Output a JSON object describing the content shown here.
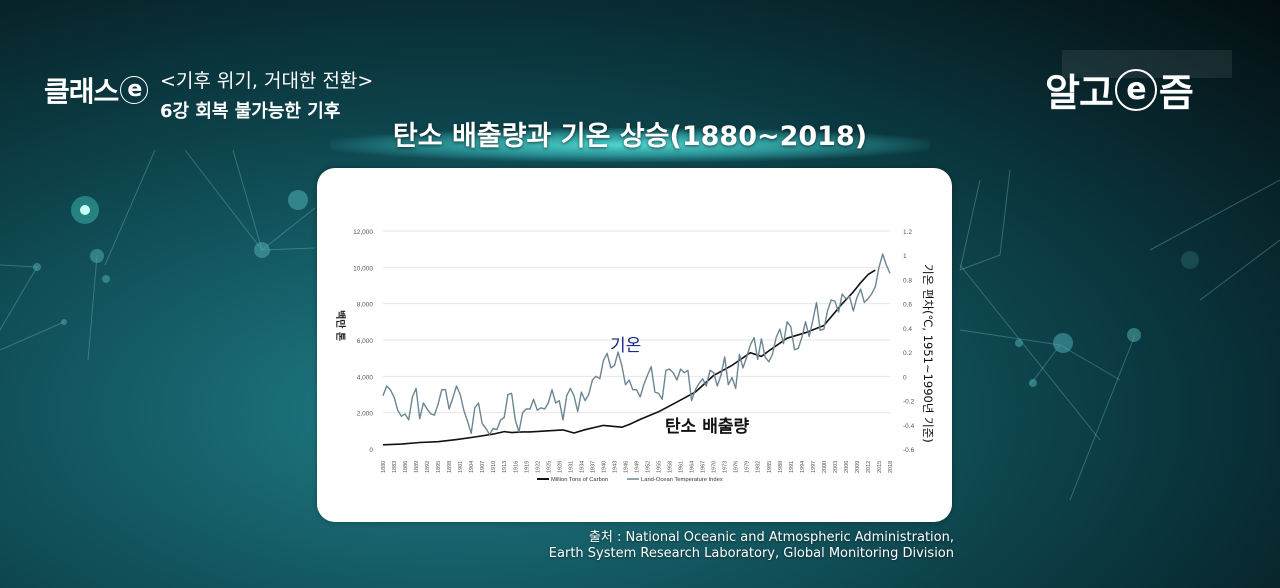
{
  "header": {
    "program_logo": "클래스",
    "program_logo_mark": "e",
    "series_title": "<기후 위기, 거대한 전환>",
    "episode": "6강 회복 불가능한 기후",
    "brand_left": "알고",
    "brand_mark": "e",
    "brand_right": "즘"
  },
  "main": {
    "title": "탄소 배출량과 기온 상승(1880~2018)"
  },
  "source": {
    "line1": "출처 : National Oceanic and Atmospheric Administration,",
    "line2": "Earth System Research Laboratory, Global Monitoring Division"
  },
  "colors": {
    "carbon_line": "#111111",
    "temp_line": "#6b8593",
    "temp_annotation": "#1a2a8a",
    "carbon_annotation": "#111111",
    "gridline": "#e6e6e6"
  },
  "chart_data": {
    "type": "line",
    "title": "탄소 배출량과 기온 상승(1880~2018)",
    "xlabel": "",
    "ylabel": "백만 톤",
    "y2label": "기온 편차(℃, 1951~1990년 기준)",
    "ylim": [
      0,
      12000
    ],
    "y2lim": [
      -0.6,
      1.2
    ],
    "yticks": [
      "0",
      "2,000",
      "4,000",
      "6,000",
      "8,000",
      "10,000",
      "12,000"
    ],
    "y2ticks": [
      "-0.6",
      "-0.4",
      "-0.2",
      "0",
      "0.2",
      "0.4",
      "0.6",
      "0.8",
      "1",
      "1.2"
    ],
    "xticks": [
      "1880",
      "1883",
      "1886",
      "1889",
      "1892",
      "1895",
      "1898",
      "1901",
      "1904",
      "1907",
      "1910",
      "1913",
      "1916",
      "1919",
      "1922",
      "1925",
      "1928",
      "1931",
      "1934",
      "1937",
      "1940",
      "1943",
      "1946",
      "1949",
      "1952",
      "1955",
      "1958",
      "1961",
      "1964",
      "1967",
      "1970",
      "1973",
      "1976",
      "1979",
      "1982",
      "1985",
      "1988",
      "1991",
      "1994",
      "1997",
      "2000",
      "2003",
      "2006",
      "2009",
      "2012",
      "2015",
      "2018"
    ],
    "grid": true,
    "legend_position": "bottom",
    "annotations": [
      {
        "text": "기온",
        "series": "Land-Ocean Temperature Index"
      },
      {
        "text": "탄소 배출량",
        "series": "Million Tons of Carbon"
      }
    ],
    "series": [
      {
        "name": "Million Tons of Carbon",
        "axis": "left",
        "x": [
          1880,
          1885,
          1890,
          1895,
          1900,
          1905,
          1910,
          1913,
          1915,
          1918,
          1920,
          1925,
          1929,
          1932,
          1935,
          1940,
          1945,
          1947,
          1950,
          1955,
          1960,
          1965,
          1970,
          1975,
          1980,
          1983,
          1985,
          1990,
          1995,
          2000,
          2005,
          2008,
          2010,
          2012,
          2014
        ],
        "values": [
          230,
          270,
          360,
          400,
          520,
          660,
          820,
          960,
          900,
          940,
          940,
          1000,
          1050,
          880,
          1060,
          1300,
          1200,
          1350,
          1630,
          2050,
          2580,
          3130,
          4050,
          4600,
          5300,
          5100,
          5400,
          6100,
          6400,
          6800,
          8000,
          8650,
          9150,
          9600,
          9850
        ]
      },
      {
        "name": "Land-Ocean Temperature Index",
        "axis": "right",
        "x": [
          1880,
          1881,
          1882,
          1883,
          1884,
          1885,
          1886,
          1887,
          1888,
          1889,
          1890,
          1891,
          1892,
          1893,
          1894,
          1895,
          1896,
          1897,
          1898,
          1899,
          1900,
          1901,
          1902,
          1903,
          1904,
          1905,
          1906,
          1907,
          1908,
          1909,
          1910,
          1911,
          1912,
          1913,
          1914,
          1915,
          1916,
          1917,
          1918,
          1919,
          1920,
          1921,
          1922,
          1923,
          1924,
          1925,
          1926,
          1927,
          1928,
          1929,
          1930,
          1931,
          1932,
          1933,
          1934,
          1935,
          1936,
          1937,
          1938,
          1939,
          1940,
          1941,
          1942,
          1943,
          1944,
          1945,
          1946,
          1947,
          1948,
          1949,
          1950,
          1951,
          1952,
          1953,
          1954,
          1955,
          1956,
          1957,
          1958,
          1959,
          1960,
          1961,
          1962,
          1963,
          1964,
          1965,
          1966,
          1967,
          1968,
          1969,
          1970,
          1971,
          1972,
          1973,
          1974,
          1975,
          1976,
          1977,
          1978,
          1979,
          1980,
          1981,
          1982,
          1983,
          1984,
          1985,
          1986,
          1987,
          1988,
          1989,
          1990,
          1991,
          1992,
          1993,
          1994,
          1995,
          1996,
          1997,
          1998,
          1999,
          2000,
          2001,
          2002,
          2003,
          2004,
          2005,
          2006,
          2007,
          2008,
          2009,
          2010,
          2011,
          2012,
          2013,
          2014,
          2015,
          2016,
          2017,
          2018
        ],
        "values": [
          -0.16,
          -0.08,
          -0.11,
          -0.17,
          -0.28,
          -0.33,
          -0.31,
          -0.36,
          -0.17,
          -0.1,
          -0.35,
          -0.22,
          -0.27,
          -0.31,
          -0.32,
          -0.23,
          -0.11,
          -0.11,
          -0.27,
          -0.18,
          -0.08,
          -0.15,
          -0.28,
          -0.37,
          -0.47,
          -0.26,
          -0.22,
          -0.39,
          -0.43,
          -0.48,
          -0.43,
          -0.44,
          -0.36,
          -0.34,
          -0.15,
          -0.14,
          -0.36,
          -0.46,
          -0.3,
          -0.27,
          -0.27,
          -0.19,
          -0.28,
          -0.26,
          -0.27,
          -0.22,
          -0.11,
          -0.22,
          -0.2,
          -0.36,
          -0.16,
          -0.1,
          -0.16,
          -0.29,
          -0.13,
          -0.2,
          -0.15,
          -0.03,
          0,
          -0.02,
          0.13,
          0.19,
          0.07,
          0.09,
          0.2,
          0.09,
          -0.07,
          -0.03,
          -0.11,
          -0.11,
          -0.17,
          -0.07,
          0.01,
          0.08,
          -0.13,
          -0.14,
          -0.19,
          0.05,
          0.06,
          0.03,
          -0.03,
          0.06,
          0.03,
          0.05,
          -0.2,
          -0.11,
          -0.06,
          -0.02,
          -0.08,
          0.05,
          0.03,
          -0.08,
          0.01,
          0.16,
          -0.07,
          -0.01,
          -0.1,
          0.18,
          0.07,
          0.16,
          0.26,
          0.32,
          0.14,
          0.31,
          0.16,
          0.12,
          0.18,
          0.32,
          0.39,
          0.27,
          0.45,
          0.41,
          0.22,
          0.23,
          0.32,
          0.45,
          0.33,
          0.46,
          0.61,
          0.38,
          0.39,
          0.54,
          0.63,
          0.62,
          0.53,
          0.68,
          0.64,
          0.66,
          0.54,
          0.65,
          0.72,
          0.61,
          0.64,
          0.68,
          0.74,
          0.9,
          1.01,
          0.92,
          0.85
        ]
      }
    ]
  }
}
